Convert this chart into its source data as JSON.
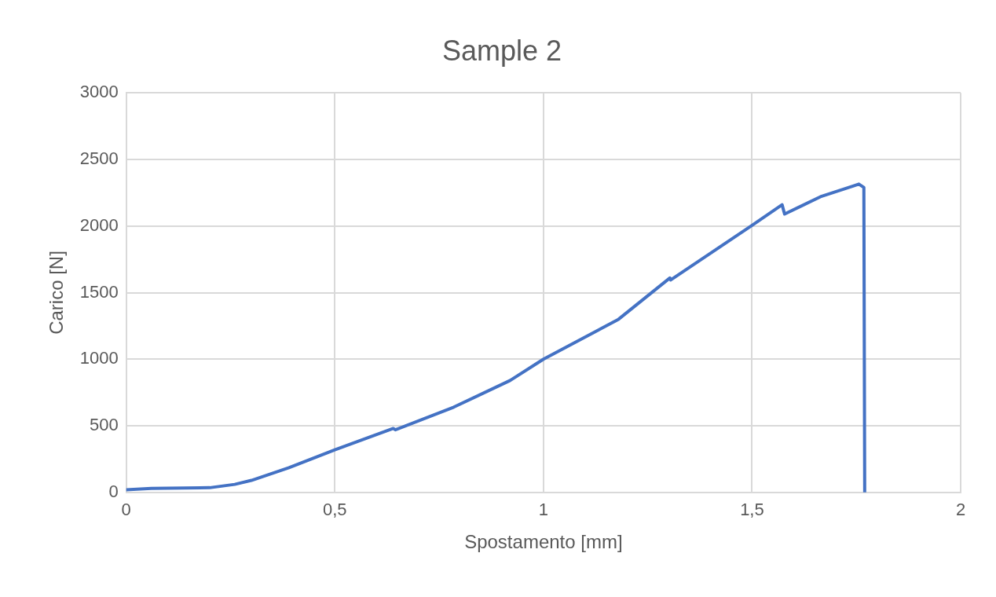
{
  "chart_data": {
    "type": "line",
    "title": "Sample 2",
    "xlabel": "Spostamento [mm]",
    "ylabel": "Carico [N]",
    "xlim": [
      0,
      2
    ],
    "xticks": [
      0,
      {
        "value": 0.5,
        "label": "0,5"
      },
      1,
      {
        "value": 1.5,
        "label": "1,5"
      },
      2
    ],
    "ylim": [
      0,
      3000
    ],
    "yticks": [
      0,
      500,
      1000,
      1500,
      2000,
      2500,
      3000
    ],
    "grid": true,
    "legend": false,
    "marker": "none",
    "line_style": "solid",
    "series": [
      {
        "color": "#4472c4",
        "x": [
          0,
          0.06,
          0.2,
          0.26,
          0.3,
          0.39,
          0.5,
          0.64,
          0.645,
          0.785,
          0.92,
          1.0,
          1.18,
          1.303,
          1.305,
          1.5,
          1.572,
          1.578,
          1.664,
          1.742,
          1.756,
          1.768,
          1.77
        ],
        "values": [
          20,
          30,
          35,
          60,
          90,
          185,
          320,
          480,
          470,
          640,
          840,
          1000,
          1300,
          1610,
          1595,
          2005,
          2160,
          2090,
          2220,
          2300,
          2315,
          2290,
          0
        ]
      }
    ]
  }
}
